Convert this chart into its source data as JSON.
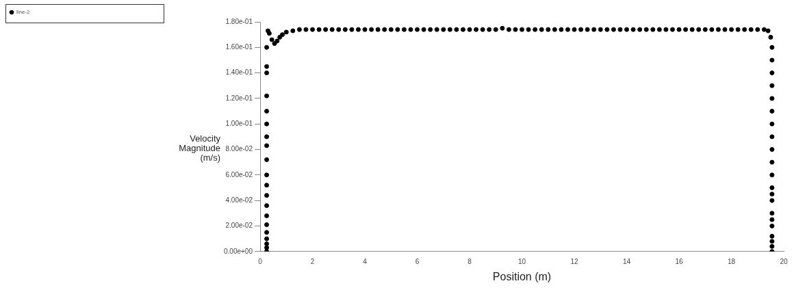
{
  "chart_data": {
    "type": "scatter",
    "xlabel": "Position (m)",
    "ylabel": "Velocity Magnitude (m/s)",
    "legend": "top left",
    "marker": "circle",
    "grid": false,
    "xlim": [
      0,
      20
    ],
    "xticks": [
      0,
      2,
      4,
      6,
      8,
      10,
      12,
      14,
      16,
      18,
      20
    ],
    "ylim": [
      0,
      0.18
    ],
    "yticks": [
      {
        "value": 0,
        "label": "0.00e+00"
      },
      {
        "value": 0.02,
        "label": "2.00e-02"
      },
      {
        "value": 0.04,
        "label": "4.00e-02"
      },
      {
        "value": 0.06,
        "label": "6.00e-02"
      },
      {
        "value": 0.08,
        "label": "8.00e-02"
      },
      {
        "value": 0.1,
        "label": "1.00e-01"
      },
      {
        "value": 0.12,
        "label": "1.20e-01"
      },
      {
        "value": 0.14,
        "label": "1.40e-01"
      },
      {
        "value": 0.16,
        "label": "1.60e-01"
      },
      {
        "value": 0.18,
        "label": "1.80e-01"
      }
    ],
    "series": [
      {
        "name": "line-2",
        "color": "#000000",
        "x": [
          0.25,
          0.25,
          0.25,
          0.25,
          0.25,
          0.25,
          0.25,
          0.25,
          0.25,
          0.25,
          0.25,
          0.25,
          0.25,
          0.25,
          0.25,
          0.25,
          0.25,
          0.25,
          0.25,
          0.25,
          0.3,
          0.35,
          0.45,
          0.55,
          0.65,
          0.75,
          0.85,
          1.0,
          1.25,
          1.5,
          1.75,
          2.0,
          2.25,
          2.5,
          2.75,
          3.0,
          3.25,
          3.5,
          3.75,
          4.0,
          4.25,
          4.5,
          4.75,
          5.0,
          5.25,
          5.5,
          5.75,
          6.0,
          6.25,
          6.5,
          6.75,
          7.0,
          7.25,
          7.5,
          7.75,
          8.0,
          8.25,
          8.5,
          8.75,
          9.0,
          9.25,
          9.5,
          9.75,
          10.0,
          10.25,
          10.5,
          10.75,
          11.0,
          11.25,
          11.5,
          11.75,
          12.0,
          12.25,
          12.5,
          12.75,
          13.0,
          13.25,
          13.5,
          13.75,
          14.0,
          14.25,
          14.5,
          14.75,
          15.0,
          15.25,
          15.5,
          15.75,
          16.0,
          16.25,
          16.5,
          16.75,
          17.0,
          17.25,
          17.5,
          17.75,
          18.0,
          18.25,
          18.5,
          18.75,
          19.0,
          19.25,
          19.4,
          19.5,
          19.55,
          19.55,
          19.55,
          19.55,
          19.55,
          19.55,
          19.55,
          19.55,
          19.55,
          19.55,
          19.55,
          19.55,
          19.55,
          19.55,
          19.55,
          19.55,
          19.55,
          19.55,
          19.55,
          19.55,
          19.55
        ],
        "values": [
          0,
          0.003,
          0.006,
          0.01,
          0.015,
          0.021,
          0.028,
          0.036,
          0.044,
          0.052,
          0.06,
          0.072,
          0.083,
          0.09,
          0.1,
          0.11,
          0.122,
          0.14,
          0.145,
          0.16,
          0.173,
          0.171,
          0.166,
          0.163,
          0.165,
          0.168,
          0.17,
          0.172,
          0.173,
          0.174,
          0.174,
          0.174,
          0.174,
          0.174,
          0.174,
          0.174,
          0.174,
          0.174,
          0.174,
          0.174,
          0.174,
          0.174,
          0.174,
          0.174,
          0.174,
          0.174,
          0.174,
          0.174,
          0.174,
          0.174,
          0.174,
          0.174,
          0.174,
          0.174,
          0.174,
          0.174,
          0.174,
          0.174,
          0.174,
          0.174,
          0.175,
          0.174,
          0.174,
          0.174,
          0.174,
          0.174,
          0.174,
          0.174,
          0.174,
          0.174,
          0.174,
          0.174,
          0.174,
          0.174,
          0.174,
          0.174,
          0.174,
          0.174,
          0.174,
          0.174,
          0.174,
          0.174,
          0.174,
          0.174,
          0.174,
          0.174,
          0.174,
          0.174,
          0.174,
          0.174,
          0.174,
          0.174,
          0.174,
          0.174,
          0.174,
          0.174,
          0.174,
          0.174,
          0.174,
          0.174,
          0.174,
          0.173,
          0.168,
          0.16,
          0.15,
          0.14,
          0.13,
          0.12,
          0.11,
          0.1,
          0.09,
          0.08,
          0.07,
          0.06,
          0.05,
          0.045,
          0.04,
          0.03,
          0.025,
          0.02,
          0.012,
          0.008,
          0.004,
          0
        ]
      }
    ]
  }
}
